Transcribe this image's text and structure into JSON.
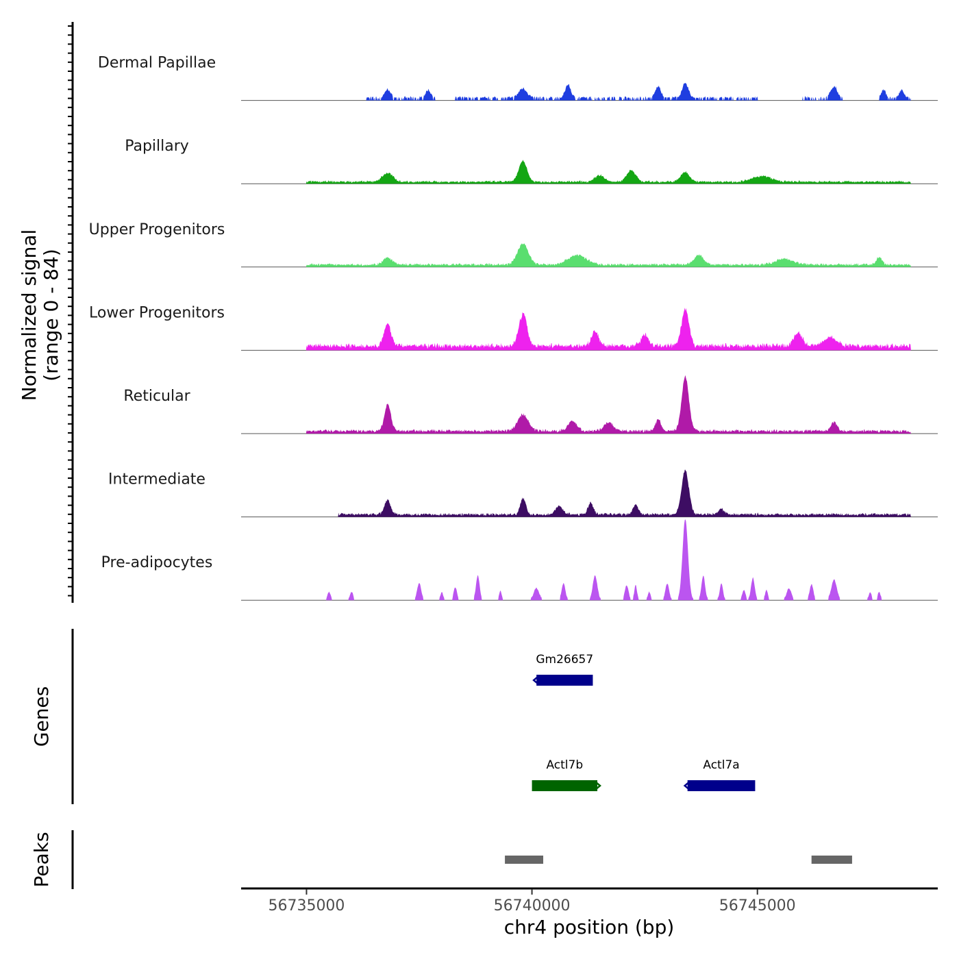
{
  "chart_data": {
    "type": "area",
    "title": "",
    "xlabel": "chr4 position (bp)",
    "ylabel": "Normalized signal",
    "ylabel_sub": "(range 0 - 84)",
    "xlim": [
      56733550,
      56749000
    ],
    "ylim": [
      0,
      84
    ],
    "x_ticks": [
      {
        "value": 56735000,
        "label": "56735000"
      },
      {
        "value": 56740000,
        "label": "56740000"
      },
      {
        "value": 56745000,
        "label": "56745000"
      }
    ],
    "series": [
      {
        "name": "Dermal Papillae",
        "color": "#1f3ee0",
        "sparse": true,
        "noise": 0.6,
        "base": 2,
        "peaks": [
          [
            56736800,
            9,
            60
          ],
          [
            56737700,
            8,
            60
          ],
          [
            56739800,
            10,
            90
          ],
          [
            56740800,
            14,
            60
          ],
          [
            56742800,
            12,
            60
          ],
          [
            56743400,
            15,
            70
          ],
          [
            56746700,
            12,
            70
          ],
          [
            56747800,
            8,
            50
          ],
          [
            56748200,
            8,
            50
          ]
        ],
        "gaps": [
          [
            56733550,
            56736300
          ],
          [
            56737850,
            56738300
          ],
          [
            56745000,
            56746000
          ],
          [
            56746900,
            56747700
          ],
          [
            56748400,
            56749000
          ]
        ]
      },
      {
        "name": "Papillary",
        "color": "#14a614",
        "sparse": false,
        "noise": 0.5,
        "base": 1.5,
        "peaks": [
          [
            56736800,
            9,
            120
          ],
          [
            56739800,
            22,
            90
          ],
          [
            56741500,
            7,
            100
          ],
          [
            56742200,
            12,
            100
          ],
          [
            56743400,
            10,
            100
          ],
          [
            56745100,
            6,
            200
          ]
        ],
        "gaps": [
          [
            56733550,
            56735000
          ],
          [
            56748400,
            56749000
          ]
        ]
      },
      {
        "name": "Upper Progenitors",
        "color": "#5ade6f",
        "sparse": false,
        "noise": 0.5,
        "base": 2,
        "peaks": [
          [
            56736800,
            7,
            100
          ],
          [
            56739800,
            22,
            120
          ],
          [
            56741000,
            10,
            200
          ],
          [
            56743700,
            10,
            100
          ],
          [
            56745600,
            6,
            200
          ],
          [
            56747700,
            8,
            60
          ]
        ],
        "gaps": [
          [
            56733550,
            56735000
          ],
          [
            56748400,
            56749000
          ]
        ]
      },
      {
        "name": "Lower Progenitors",
        "color": "#ee22ee",
        "sparse": false,
        "noise": 0.8,
        "base": 4,
        "peaks": [
          [
            56736800,
            22,
            80
          ],
          [
            56739800,
            33,
            90
          ],
          [
            56741400,
            15,
            80
          ],
          [
            56742500,
            12,
            80
          ],
          [
            56743400,
            38,
            80
          ],
          [
            56745900,
            13,
            100
          ],
          [
            56746600,
            9,
            150
          ]
        ],
        "gaps": [
          [
            56733550,
            56735000
          ],
          [
            56748400,
            56749000
          ]
        ]
      },
      {
        "name": "Reticular",
        "color": "#b01aa8",
        "sparse": false,
        "noise": 0.7,
        "base": 2,
        "peaks": [
          [
            56736800,
            28,
            70
          ],
          [
            56739800,
            17,
            120
          ],
          [
            56740900,
            10,
            100
          ],
          [
            56741700,
            9,
            100
          ],
          [
            56742800,
            12,
            60
          ],
          [
            56743400,
            56,
            80
          ],
          [
            56746700,
            9,
            70
          ]
        ],
        "gaps": [
          [
            56733550,
            56735000
          ],
          [
            56748400,
            56749000
          ]
        ]
      },
      {
        "name": "Intermediate",
        "color": "#3d0d63",
        "sparse": false,
        "noise": 0.6,
        "base": 2,
        "peaks": [
          [
            56736800,
            15,
            70
          ],
          [
            56739800,
            17,
            60
          ],
          [
            56740600,
            9,
            80
          ],
          [
            56741300,
            12,
            60
          ],
          [
            56742300,
            10,
            60
          ],
          [
            56743400,
            46,
            80
          ],
          [
            56744200,
            6,
            60
          ]
        ],
        "gaps": [
          [
            56733550,
            56735700
          ],
          [
            56748400,
            56749000
          ]
        ]
      },
      {
        "name": "Pre-adipocytes",
        "color": "#bb55f0",
        "sparse": true,
        "noise": 0.4,
        "base": 0,
        "peaks": [
          [
            56735500,
            8,
            35
          ],
          [
            56736000,
            8,
            35
          ],
          [
            56737500,
            17,
            45
          ],
          [
            56738000,
            8,
            30
          ],
          [
            56738300,
            13,
            35
          ],
          [
            56738800,
            25,
            40
          ],
          [
            56739300,
            9,
            30
          ],
          [
            56740100,
            12,
            60
          ],
          [
            56740700,
            17,
            40
          ],
          [
            56741400,
            25,
            50
          ],
          [
            56742100,
            15,
            40
          ],
          [
            56742300,
            15,
            30
          ],
          [
            56742600,
            8,
            30
          ],
          [
            56743000,
            17,
            40
          ],
          [
            56743400,
            84,
            60
          ],
          [
            56743800,
            25,
            40
          ],
          [
            56744200,
            17,
            35
          ],
          [
            56744700,
            10,
            35
          ],
          [
            56744900,
            23,
            40
          ],
          [
            56745200,
            10,
            30
          ],
          [
            56745700,
            12,
            50
          ],
          [
            56746200,
            16,
            40
          ],
          [
            56746700,
            21,
            60
          ],
          [
            56747500,
            8,
            30
          ],
          [
            56747700,
            8,
            30
          ]
        ],
        "gaps": []
      }
    ],
    "genes_track": {
      "label": "Genes",
      "genes": [
        {
          "name": "Gm26657",
          "start": 56740100,
          "end": 56741350,
          "row": 1,
          "strand": "-",
          "color": "#00008b"
        },
        {
          "name": "Actl7b",
          "start": 56740000,
          "end": 56741450,
          "row": 2,
          "strand": "+",
          "color": "#006400"
        },
        {
          "name": "Actl7a",
          "start": 56743450,
          "end": 56744950,
          "row": 2,
          "strand": "-",
          "color": "#00008b"
        }
      ]
    },
    "peaks_track": {
      "label": "Peaks",
      "color": "#666666",
      "peaks": [
        {
          "start": 56739400,
          "end": 56740250
        },
        {
          "start": 56746200,
          "end": 56747100
        }
      ]
    }
  }
}
